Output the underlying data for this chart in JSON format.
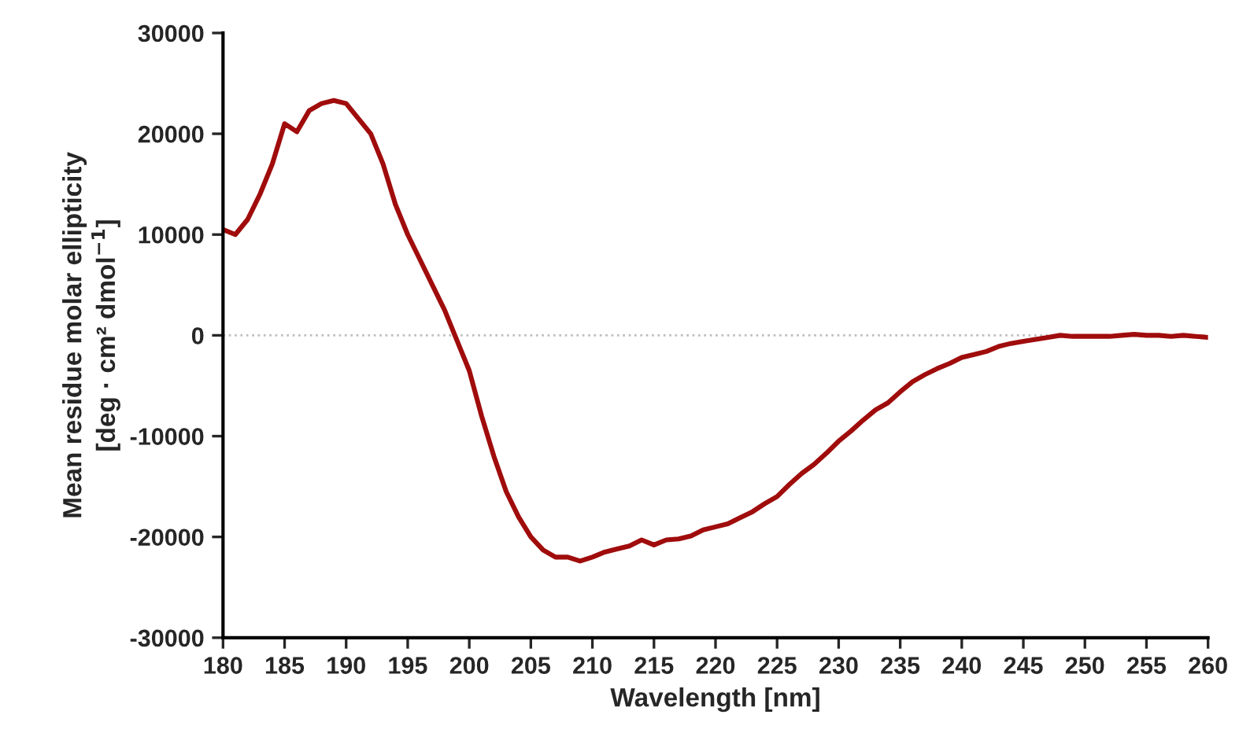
{
  "chart_data": {
    "type": "line",
    "xlabel": "Wavelength [nm]",
    "ylabel": "Mean residue molar ellipticity\n[deg · cm² dmol$^{−1}$]",
    "x": [
      180,
      181,
      182,
      183,
      184,
      185,
      186,
      187,
      188,
      189,
      190,
      191,
      192,
      193,
      194,
      195,
      196,
      197,
      198,
      199,
      200,
      201,
      202,
      203,
      204,
      205,
      206,
      207,
      208,
      209,
      210,
      211,
      212,
      213,
      214,
      215,
      216,
      217,
      218,
      219,
      220,
      221,
      222,
      223,
      224,
      225,
      226,
      227,
      228,
      229,
      230,
      231,
      232,
      233,
      234,
      235,
      236,
      237,
      238,
      239,
      240,
      241,
      242,
      243,
      244,
      245,
      246,
      247,
      248,
      249,
      250,
      251,
      252,
      253,
      254,
      255,
      256,
      257,
      258,
      259,
      260
    ],
    "series": [
      {
        "color": "#a00c0c",
        "values": [
          10500,
          10000,
          11500,
          14000,
          17000,
          21000,
          20200,
          22300,
          23000,
          23300,
          23000,
          21500,
          20000,
          17000,
          13000,
          10000,
          7500,
          5000,
          2500,
          -500,
          -3500,
          -8000,
          -12000,
          -15500,
          -18000,
          -20000,
          -21300,
          -22000,
          -22000,
          -22400,
          -22000,
          -21500,
          -21200,
          -20900,
          -20300,
          -20800,
          -20300,
          -20200,
          -19900,
          -19300,
          -19000,
          -18700,
          -18100,
          -17500,
          -16700,
          -16000,
          -14800,
          -13700,
          -12800,
          -11700,
          -10500,
          -9500,
          -8400,
          -7400,
          -6700,
          -5600,
          -4600,
          -3900,
          -3300,
          -2800,
          -2200,
          -1900,
          -1600,
          -1100,
          -800,
          -600,
          -400,
          -200,
          0,
          -100,
          -100,
          -100,
          -100,
          0,
          100,
          0,
          0,
          -100,
          0,
          -100,
          -200
        ]
      }
    ],
    "xlim": [
      180,
      260
    ],
    "xticks": [
      180,
      185,
      190,
      195,
      200,
      205,
      210,
      215,
      220,
      225,
      230,
      235,
      240,
      245,
      250,
      255,
      260
    ],
    "ylim": [
      -30000,
      30000
    ],
    "yticks": [
      -30000,
      -20000,
      -10000,
      0,
      10000,
      20000,
      30000
    ],
    "ref_lines": [
      {
        "axis": "y",
        "value": 0,
        "color": "#bfbfbf",
        "line_style": "dotted"
      }
    ],
    "grid": false,
    "legend": false,
    "marker": "none",
    "line_style": "solid"
  }
}
